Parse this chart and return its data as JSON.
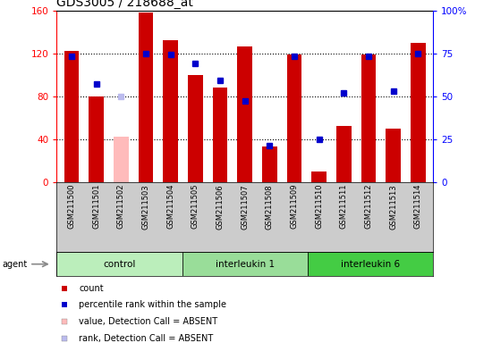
{
  "title": "GDS3005 / 218688_at",
  "samples": [
    "GSM211500",
    "GSM211501",
    "GSM211502",
    "GSM211503",
    "GSM211504",
    "GSM211505",
    "GSM211506",
    "GSM211507",
    "GSM211508",
    "GSM211509",
    "GSM211510",
    "GSM211511",
    "GSM211512",
    "GSM211513",
    "GSM211514"
  ],
  "counts": [
    122,
    80,
    42,
    158,
    132,
    100,
    88,
    126,
    33,
    119,
    10,
    52,
    119,
    50,
    130
  ],
  "absent": [
    false,
    false,
    true,
    false,
    false,
    false,
    false,
    false,
    false,
    false,
    false,
    false,
    false,
    false,
    false
  ],
  "percentile": [
    73,
    57,
    50,
    75,
    74,
    69,
    59,
    47,
    21,
    73,
    25,
    52,
    73,
    53,
    75
  ],
  "rank_absent": [
    false,
    false,
    true,
    false,
    false,
    false,
    false,
    false,
    false,
    false,
    false,
    false,
    false,
    false,
    false
  ],
  "groups": [
    {
      "label": "control",
      "start": 0,
      "end": 5,
      "color": "#bbeebb"
    },
    {
      "label": "interleukin 1",
      "start": 5,
      "end": 10,
      "color": "#99dd99"
    },
    {
      "label": "interleukin 6",
      "start": 10,
      "end": 15,
      "color": "#44cc44"
    }
  ],
  "bar_color_present": "#cc0000",
  "bar_color_absent": "#ffbbbb",
  "dot_color_present": "#0000cc",
  "dot_color_absent": "#bbbbee",
  "ylim_left": [
    0,
    160
  ],
  "ylim_right": [
    0,
    100
  ],
  "yticks_left": [
    0,
    40,
    80,
    120,
    160
  ],
  "yticks_right": [
    0,
    25,
    50,
    75,
    100
  ],
  "ytick_labels_right": [
    "0",
    "25",
    "50",
    "75",
    "100%"
  ],
  "legend": [
    {
      "color": "#cc0000",
      "label": "count"
    },
    {
      "color": "#0000cc",
      "label": "percentile rank within the sample"
    },
    {
      "color": "#ffbbbb",
      "label": "value, Detection Call = ABSENT"
    },
    {
      "color": "#bbbbee",
      "label": "rank, Detection Call = ABSENT"
    }
  ]
}
